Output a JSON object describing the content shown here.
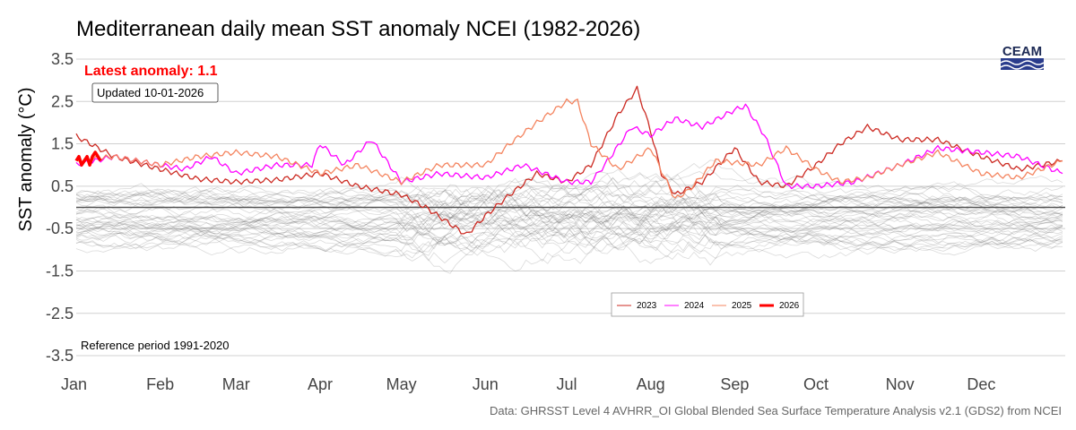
{
  "chart_data": {
    "type": "line",
    "title": "Mediterranean daily mean SST anomaly NCEI (1982-2026)",
    "ylabel": "SST anomaly (°C)",
    "xlabel": "",
    "ylim": [
      -3.5,
      3.5
    ],
    "yticks": [
      "3.5",
      "2.5",
      "1.5",
      "0.5",
      "-0.5",
      "-1.5",
      "-2.5",
      "-3.5"
    ],
    "ytick_values": [
      3.5,
      2.5,
      1.5,
      0.5,
      -0.5,
      -1.5,
      -2.5,
      -3.5
    ],
    "xlim_day_of_year": [
      1,
      365
    ],
    "xticks": [
      "Jan",
      "Feb",
      "Mar",
      "Apr",
      "May",
      "Jun",
      "Jul",
      "Aug",
      "Sep",
      "Oct",
      "Nov",
      "Dec"
    ],
    "xtick_days": [
      1,
      32,
      60,
      91,
      121,
      152,
      182,
      213,
      244,
      274,
      305,
      335
    ],
    "grid": true,
    "latest_label": "Latest anomaly: 1.1",
    "updated_label": "Updated 10-01-2026",
    "reference_label": "Reference period 1991-2020",
    "source": "Data: GHRSST Level 4 AVHRR_OI Global Blended Sea Surface Temperature Analysis v2.1 (GDS2) from NCEI",
    "logo_text": "CEAM",
    "legend_position": "bottom-center",
    "series": [
      {
        "name": "2023",
        "color": "#cc2a22",
        "width": 1.3,
        "days": [
          1,
          15,
          32,
          46,
          60,
          75,
          91,
          105,
          121,
          130,
          145,
          152,
          161,
          171,
          182,
          191,
          196,
          201,
          208,
          213,
          217,
          222,
          232,
          244,
          253,
          263,
          274,
          283,
          293,
          305,
          319,
          335,
          349,
          365
        ],
        "values": [
          1.68,
          1.2,
          0.9,
          0.67,
          0.6,
          0.65,
          0.8,
          0.5,
          0.3,
          0.0,
          -0.65,
          -0.2,
          0.3,
          0.8,
          0.6,
          1.0,
          1.6,
          2.2,
          2.8,
          1.8,
          0.8,
          0.3,
          0.6,
          1.4,
          0.6,
          0.5,
          1.0,
          1.5,
          1.9,
          1.6,
          1.6,
          1.2,
          0.9,
          1.1
        ]
      },
      {
        "name": "2024",
        "color": "#ff00ff",
        "width": 1.3,
        "days": [
          1,
          15,
          32,
          41,
          51,
          60,
          75,
          88,
          91,
          100,
          110,
          121,
          135,
          152,
          166,
          182,
          191,
          196,
          206,
          213,
          222,
          232,
          244,
          248,
          255,
          263,
          274,
          288,
          305,
          319,
          335,
          349,
          365
        ],
        "values": [
          1.0,
          1.2,
          1.0,
          0.9,
          1.2,
          0.8,
          1.0,
          1.0,
          1.5,
          1.0,
          1.6,
          0.6,
          0.8,
          0.7,
          1.0,
          0.6,
          0.6,
          1.0,
          1.9,
          1.7,
          2.1,
          1.9,
          2.3,
          2.4,
          1.7,
          0.5,
          0.5,
          0.6,
          1.0,
          1.4,
          1.3,
          1.2,
          0.8
        ]
      },
      {
        "name": "2025",
        "color": "#f4845f",
        "width": 1.3,
        "days": [
          1,
          15,
          32,
          46,
          60,
          75,
          91,
          105,
          121,
          135,
          152,
          161,
          171,
          182,
          186,
          191,
          201,
          213,
          222,
          227,
          237,
          253,
          263,
          274,
          283,
          293,
          305,
          319,
          335,
          349,
          365
        ],
        "values": [
          1.1,
          1.2,
          1.0,
          1.2,
          1.3,
          1.2,
          0.8,
          1.0,
          0.6,
          1.0,
          1.0,
          1.5,
          2.0,
          2.5,
          2.5,
          1.5,
          0.9,
          1.4,
          0.2,
          0.4,
          1.1,
          1.0,
          1.4,
          0.9,
          0.6,
          0.7,
          1.0,
          1.3,
          0.8,
          0.7,
          1.1
        ]
      },
      {
        "name": "2026",
        "color": "#ff0000",
        "width": 3.5,
        "days": [
          1,
          2,
          3,
          4,
          5,
          6,
          7,
          8,
          9,
          10
        ],
        "values": [
          1.1,
          1.2,
          1.0,
          1.1,
          1.2,
          1.0,
          1.2,
          1.3,
          1.2,
          1.1
        ]
      }
    ]
  }
}
